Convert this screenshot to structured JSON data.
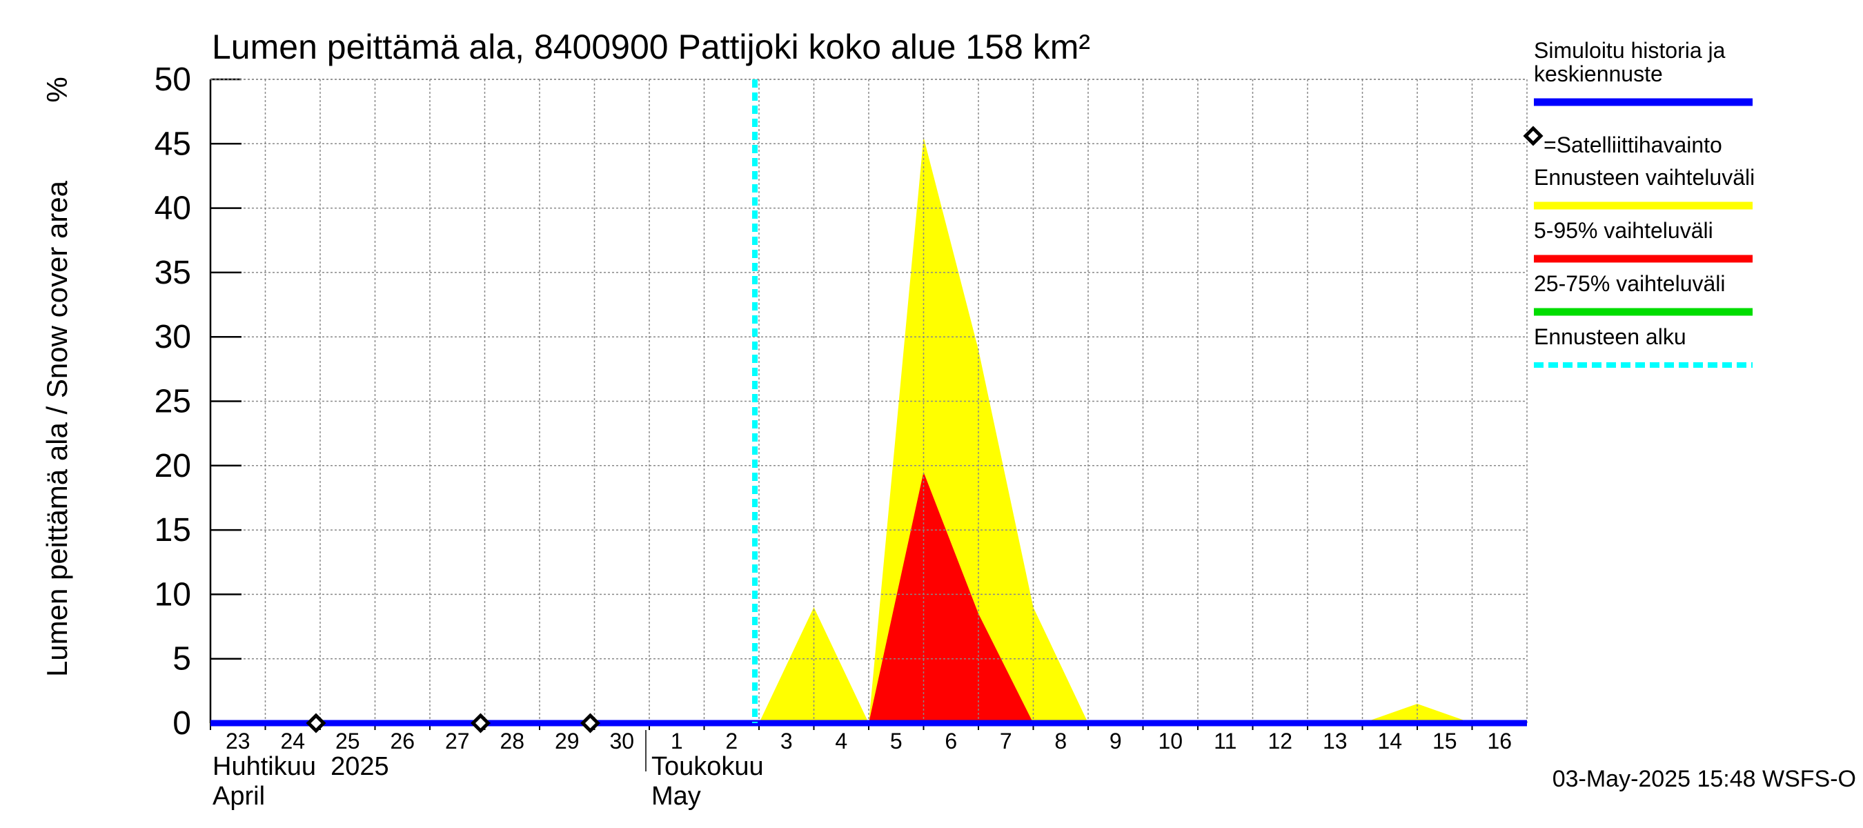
{
  "chart_data": {
    "type": "area",
    "title": "Lumen peittämä ala, 8400900 Pattijoki koko alue 158 km²",
    "ylabel": "Lumen peittämä ala / Snow cover area",
    "yunit": "%",
    "ylim": [
      0,
      50
    ],
    "yticks": [
      0,
      5,
      10,
      15,
      20,
      25,
      30,
      35,
      40,
      45,
      50
    ],
    "xlim": [
      "2025-04-23",
      "2025-05-17"
    ],
    "x_ticks": [
      {
        "date": "2025-04-23",
        "label": "23"
      },
      {
        "date": "2025-04-24",
        "label": "24"
      },
      {
        "date": "2025-04-25",
        "label": "25"
      },
      {
        "date": "2025-04-26",
        "label": "26"
      },
      {
        "date": "2025-04-27",
        "label": "27"
      },
      {
        "date": "2025-04-28",
        "label": "28"
      },
      {
        "date": "2025-04-29",
        "label": "29"
      },
      {
        "date": "2025-04-30",
        "label": "30"
      },
      {
        "date": "2025-05-01",
        "label": "1"
      },
      {
        "date": "2025-05-02",
        "label": "2"
      },
      {
        "date": "2025-05-03",
        "label": "3"
      },
      {
        "date": "2025-05-04",
        "label": "4"
      },
      {
        "date": "2025-05-05",
        "label": "5"
      },
      {
        "date": "2025-05-06",
        "label": "6"
      },
      {
        "date": "2025-05-07",
        "label": "7"
      },
      {
        "date": "2025-05-08",
        "label": "8"
      },
      {
        "date": "2025-05-09",
        "label": "9"
      },
      {
        "date": "2025-05-10",
        "label": "10"
      },
      {
        "date": "2025-05-11",
        "label": "11"
      },
      {
        "date": "2025-05-12",
        "label": "12"
      },
      {
        "date": "2025-05-13",
        "label": "13"
      },
      {
        "date": "2025-05-14",
        "label": "14"
      },
      {
        "date": "2025-05-15",
        "label": "15"
      },
      {
        "date": "2025-05-16",
        "label": "16"
      }
    ],
    "month_labels": [
      {
        "date": "2025-04-23",
        "line1": "Huhtikuu  2025",
        "line2": "April"
      },
      {
        "date": "2025-05-01",
        "line1": "Toukokuu",
        "line2": "May"
      }
    ],
    "month_boundary": "2025-05-01",
    "forecast_start": "2025-05-03",
    "series": [
      {
        "name": "Ennusteen vaihteluväli",
        "color": "#ffff00",
        "kind": "band",
        "points": [
          [
            "2025-05-03",
            0
          ],
          [
            "2025-05-04",
            9
          ],
          [
            "2025-05-05",
            0
          ],
          [
            "2025-05-06",
            45.5
          ],
          [
            "2025-05-07",
            29
          ],
          [
            "2025-05-08",
            9
          ],
          [
            "2025-05-09",
            0
          ],
          [
            "2025-05-14",
            0
          ],
          [
            "2025-05-15",
            1.5
          ],
          [
            "2025-05-16",
            0
          ]
        ]
      },
      {
        "name": "5-95% vaihteluväli",
        "color": "#ff0000",
        "kind": "band",
        "points": [
          [
            "2025-05-05",
            0
          ],
          [
            "2025-05-06",
            19.5
          ],
          [
            "2025-05-07",
            8.5
          ],
          [
            "2025-05-08",
            0
          ]
        ]
      },
      {
        "name": "25-75% vaihteluväli",
        "color": "#00dd00",
        "kind": "band",
        "points": []
      },
      {
        "name": "Simuloitu historia ja keskiennuste",
        "color": "#0000ff",
        "kind": "line",
        "points": [
          [
            "2025-04-23",
            0
          ],
          [
            "2025-05-17",
            0
          ]
        ]
      }
    ],
    "observations": {
      "name": "=Satelliittihavainto",
      "points": [
        [
          "2025-04-25",
          0
        ],
        [
          "2025-04-28",
          0
        ],
        [
          "2025-04-30",
          0
        ]
      ]
    },
    "legend": {
      "placement": "right",
      "items": [
        {
          "lines": [
            "Simuloitu historia ja",
            "keskiennuste"
          ],
          "color": "#0000ff",
          "style": "solid"
        },
        {
          "lines": [
            "=Satelliittihavainto"
          ],
          "color": "#000000",
          "style": "marker"
        },
        {
          "lines": [
            "Ennusteen vaihteluväli"
          ],
          "color": "#ffff00",
          "style": "solid"
        },
        {
          "lines": [
            "5-95% vaihteluväli"
          ],
          "color": "#ff0000",
          "style": "solid"
        },
        {
          "lines": [
            "25-75% vaihteluväli"
          ],
          "color": "#00dd00",
          "style": "solid"
        },
        {
          "lines": [
            "Ennusteen alku"
          ],
          "color": "#00ffff",
          "style": "dashed"
        }
      ]
    },
    "footer": "03-May-2025 15:48 WSFS-O",
    "grid": true
  }
}
